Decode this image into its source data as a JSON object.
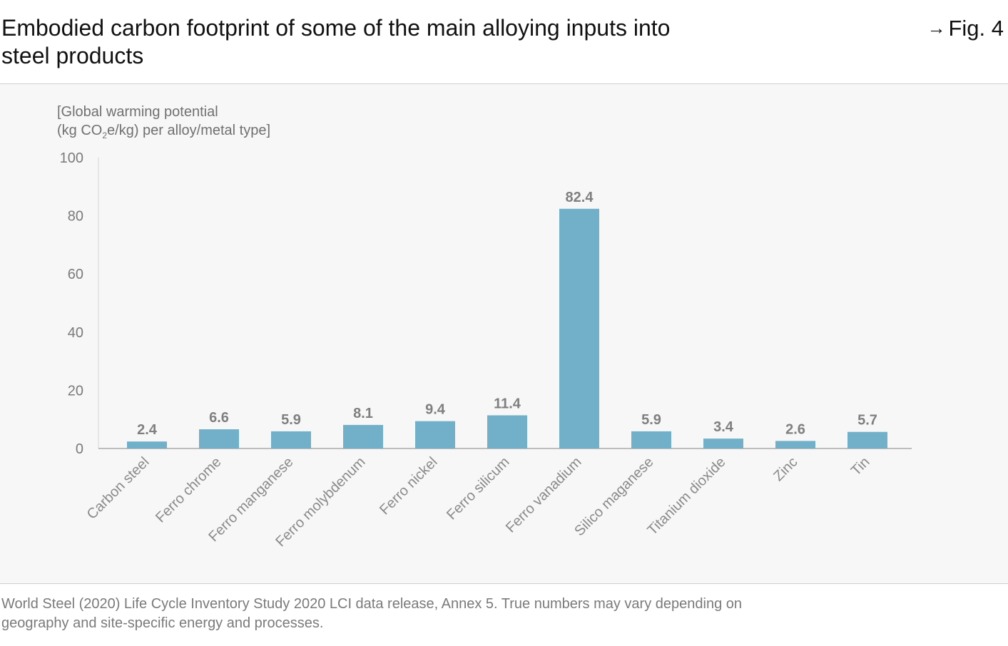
{
  "header": {
    "title": "Embodied carbon footprint of some of the main alloying inputs into steel products",
    "fig_arrow": "→",
    "fig_label": "Fig. 4"
  },
  "chart_data": {
    "type": "bar",
    "title": "Embodied carbon footprint of some of the main alloying inputs into steel products",
    "ylabel_line1": "[Global warming potential",
    "ylabel_line2_pre": "(kg CO",
    "ylabel_line2_sub": "2",
    "ylabel_line2_post": "e/kg) per alloy/metal type]",
    "xlabel": "",
    "ylim": [
      0,
      100
    ],
    "yticks": [
      0,
      20,
      40,
      60,
      80,
      100
    ],
    "categories": [
      "Carbon steel",
      "Ferro chrome",
      "Ferro manganese",
      "Ferro molybdenum",
      "Ferro nickel",
      "Ferro silicum",
      "Ferro vanadium",
      "Silico maganese",
      "Titanium dioxide",
      "Zinc",
      "Tin"
    ],
    "values": [
      2.4,
      6.6,
      5.9,
      8.1,
      9.4,
      11.4,
      82.4,
      5.9,
      3.4,
      2.6,
      5.7
    ],
    "value_labels": [
      "2.4",
      "6.6",
      "5.9",
      "8.1",
      "9.4",
      "11.4",
      "82.4",
      "5.9",
      "3.4",
      "2.6",
      "5.7"
    ],
    "bar_color": "#72afc8",
    "grid": false,
    "legend": "none"
  },
  "footer": {
    "source_line1": "World Steel (2020) Life Cycle Inventory Study 2020 LCI data release, Annex 5. True numbers may vary depending on",
    "source_line2": "geography and site-specific energy and processes."
  }
}
